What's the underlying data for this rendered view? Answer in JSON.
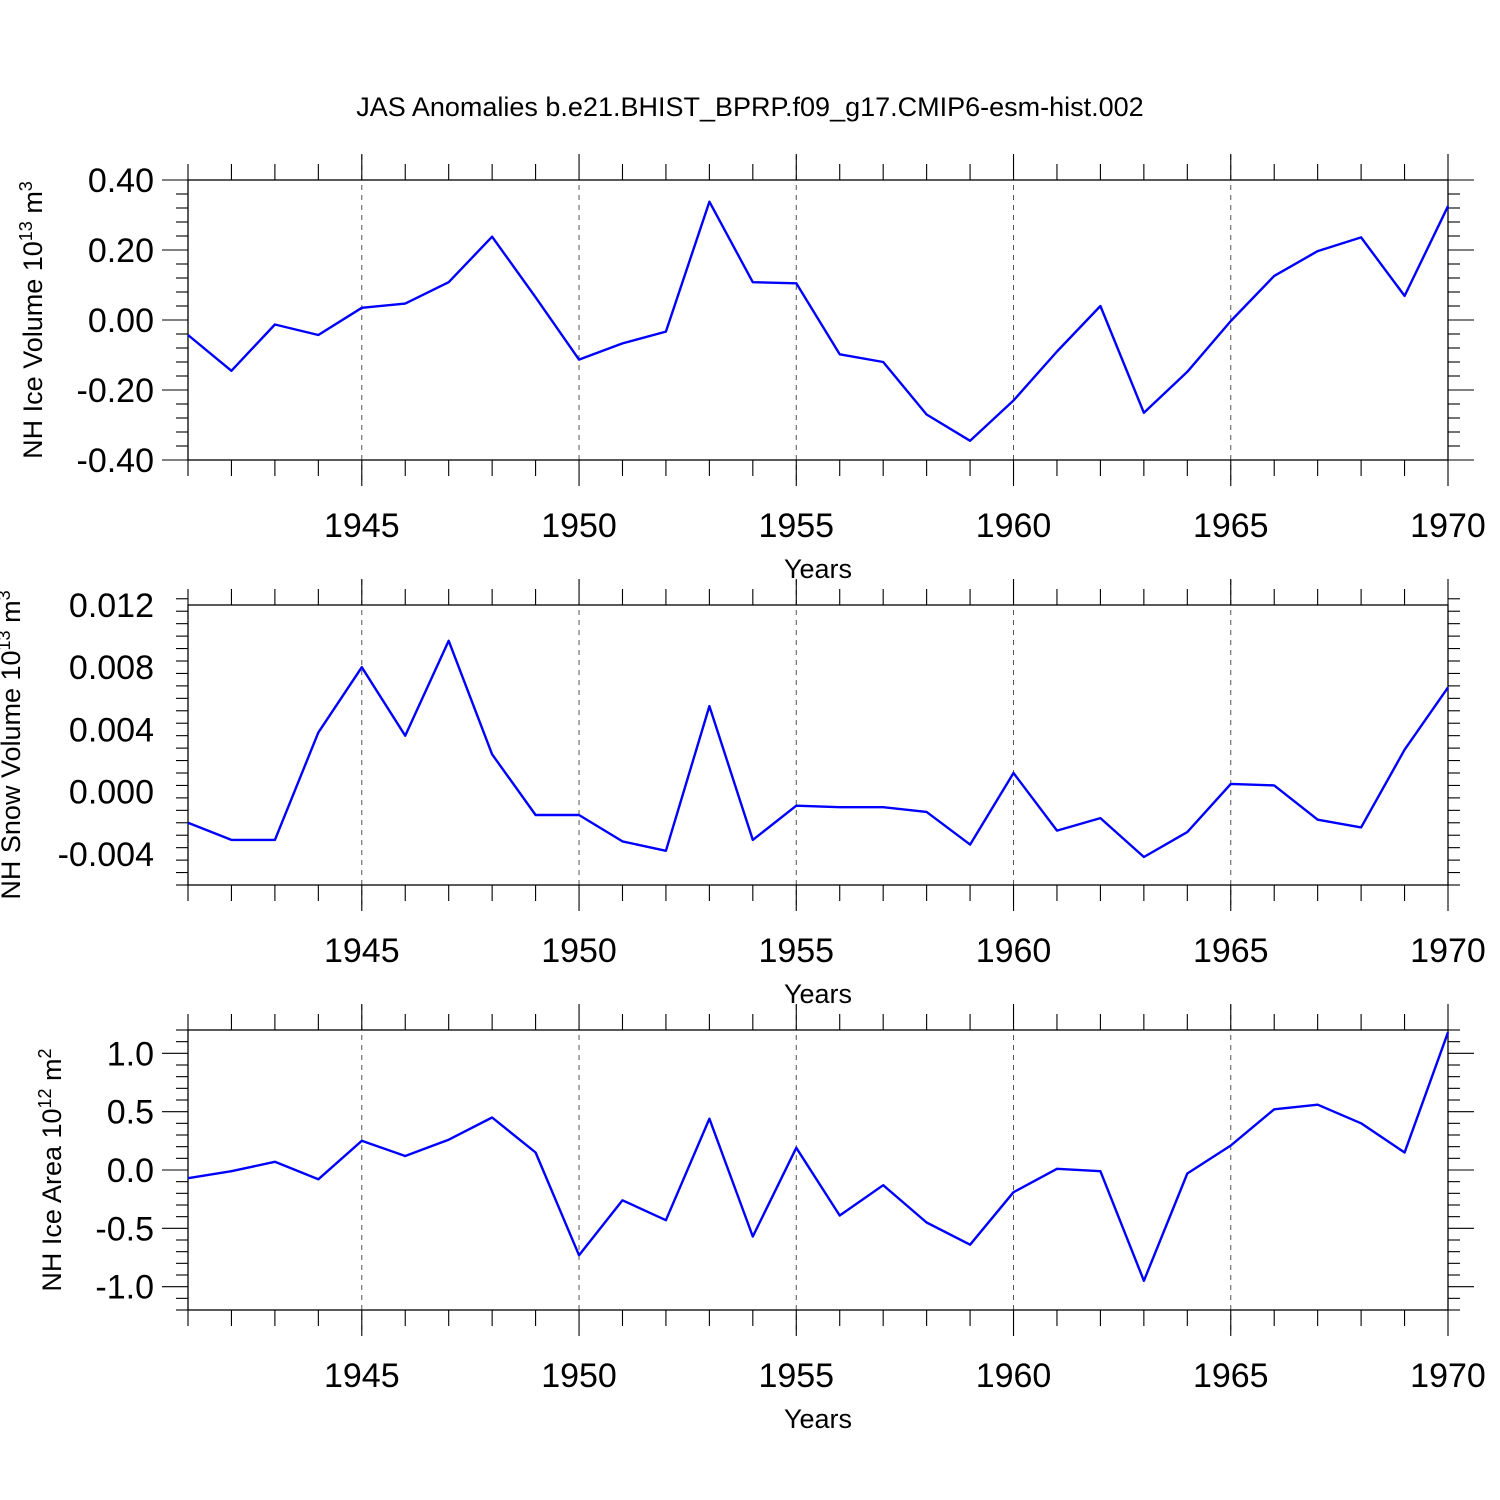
{
  "title": "JAS Anomalies b.e21.BHIST_BPRP.f09_g17.CMIP6-esm-hist.002",
  "line_color": "#0000ff",
  "chart_data": [
    {
      "type": "line",
      "ylabel": "NH Ice Volume 10",
      "ylabel_exp": "13",
      "ylabel_unit": " m",
      "ylabel_unit_exp": "3",
      "xlabel": "Years",
      "xlim": [
        1941,
        1970
      ],
      "ylim": [
        -0.4,
        0.4
      ],
      "yticks": [
        -0.4,
        -0.2,
        0.0,
        0.2,
        0.4
      ],
      "ytick_labels": [
        "-0.40",
        "-0.20",
        "0.00",
        "0.20",
        "0.40"
      ],
      "xticks": [
        1945,
        1950,
        1955,
        1960,
        1965,
        1970
      ],
      "xtick_labels": [
        "1945",
        "1950",
        "1955",
        "1960",
        "1965",
        "1970"
      ],
      "vgrid": [
        1945,
        1950,
        1955,
        1960,
        1965
      ],
      "x": [
        1941,
        1942,
        1943,
        1944,
        1945,
        1946,
        1947,
        1948,
        1949,
        1950,
        1951,
        1952,
        1953,
        1954,
        1955,
        1956,
        1957,
        1958,
        1959,
        1960,
        1961,
        1962,
        1963,
        1964,
        1965,
        1966,
        1967,
        1968,
        1969,
        1970
      ],
      "y": [
        -0.043,
        -0.145,
        -0.013,
        -0.043,
        0.035,
        0.047,
        0.108,
        0.238,
        0.065,
        -0.113,
        -0.067,
        -0.033,
        0.338,
        0.108,
        0.105,
        -0.098,
        -0.12,
        -0.27,
        -0.345,
        -0.23,
        -0.09,
        0.04,
        -0.265,
        -0.148,
        -0.003,
        0.126,
        0.197,
        0.236,
        0.069,
        0.325
      ]
    },
    {
      "type": "line",
      "ylabel": "NH Snow Volume 10",
      "ylabel_exp": "13",
      "ylabel_unit": " m",
      "ylabel_unit_exp": "3",
      "xlabel": "Years",
      "xlim": [
        1941,
        1970
      ],
      "ylim": [
        -0.006,
        0.012
      ],
      "yticks": [
        -0.004,
        0.0,
        0.004,
        0.008,
        0.012
      ],
      "ytick_labels": [
        "-0.004",
        "0.000",
        "0.004",
        "0.008",
        "0.012"
      ],
      "xticks": [
        1945,
        1950,
        1955,
        1960,
        1965,
        1970
      ],
      "xtick_labels": [
        "1945",
        "1950",
        "1955",
        "1960",
        "1965",
        "1970"
      ],
      "vgrid": [
        1945,
        1950,
        1955,
        1960,
        1965
      ],
      "x": [
        1941,
        1942,
        1943,
        1944,
        1945,
        1946,
        1947,
        1948,
        1949,
        1950,
        1951,
        1952,
        1953,
        1954,
        1955,
        1956,
        1957,
        1958,
        1959,
        1960,
        1961,
        1962,
        1963,
        1964,
        1965,
        1966,
        1967,
        1968,
        1969,
        1970
      ],
      "y": [
        -0.002,
        -0.0031,
        -0.0031,
        0.0038,
        0.008,
        0.0036,
        0.0097,
        0.0024,
        -0.0015,
        -0.0015,
        -0.0032,
        -0.0038,
        0.0055,
        -0.0031,
        -0.0009,
        -0.001,
        -0.001,
        -0.0013,
        -0.0034,
        0.0012,
        -0.0025,
        -0.0017,
        -0.0042,
        -0.0026,
        0.0005,
        0.0004,
        -0.0018,
        -0.0023,
        0.0027,
        0.0067
      ]
    },
    {
      "type": "line",
      "ylabel": "NH Ice Area 10",
      "ylabel_exp": "12",
      "ylabel_unit": " m",
      "ylabel_unit_exp": "2",
      "xlabel": "Years",
      "xlim": [
        1941,
        1970
      ],
      "ylim": [
        -1.2,
        1.2
      ],
      "yticks": [
        -1.0,
        -0.5,
        0.0,
        0.5,
        1.0
      ],
      "ytick_labels": [
        "-1.0",
        "-0.5",
        "0.0",
        "0.5",
        "1.0"
      ],
      "xticks": [
        1945,
        1950,
        1955,
        1960,
        1965,
        1970
      ],
      "xtick_labels": [
        "1945",
        "1950",
        "1955",
        "1960",
        "1965",
        "1970"
      ],
      "vgrid": [
        1945,
        1950,
        1955,
        1960,
        1965
      ],
      "x": [
        1941,
        1942,
        1943,
        1944,
        1945,
        1946,
        1947,
        1948,
        1949,
        1950,
        1951,
        1952,
        1953,
        1954,
        1955,
        1956,
        1957,
        1958,
        1959,
        1960,
        1961,
        1962,
        1963,
        1964,
        1965,
        1966,
        1967,
        1968,
        1969,
        1970
      ],
      "y": [
        -0.07,
        -0.01,
        0.07,
        -0.08,
        0.25,
        0.12,
        0.26,
        0.45,
        0.15,
        -0.73,
        -0.26,
        -0.43,
        0.44,
        -0.57,
        0.19,
        -0.39,
        -0.13,
        -0.45,
        -0.64,
        -0.19,
        0.01,
        -0.01,
        -0.95,
        -0.03,
        0.21,
        0.52,
        0.56,
        0.4,
        0.15,
        1.18
      ]
    }
  ]
}
